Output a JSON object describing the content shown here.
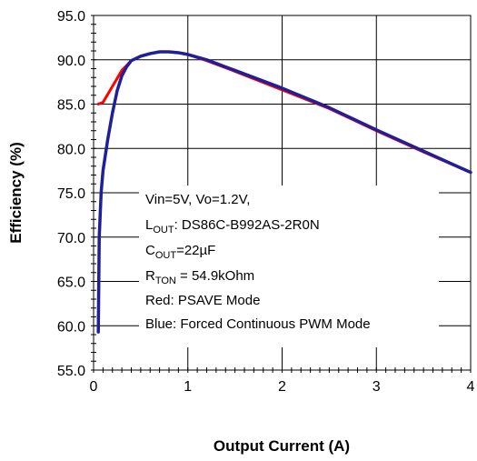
{
  "chart_data": {
    "type": "line",
    "xlabel": "Output Current (A)",
    "ylabel": "Efficiency (%)",
    "xlim": [
      0,
      4
    ],
    "ylim": [
      55,
      95
    ],
    "x_ticks": [
      0,
      1,
      2,
      3,
      4
    ],
    "x_tick_labels": [
      "0",
      "1",
      "2",
      "3",
      "4"
    ],
    "y_ticks": [
      55,
      60,
      65,
      70,
      75,
      80,
      85,
      90,
      95
    ],
    "y_tick_labels": [
      "55.0",
      "60.0",
      "65.0",
      "70.0",
      "75.0",
      "80.0",
      "85.0",
      "90.0",
      "95.0"
    ],
    "grid": true,
    "series": [
      {
        "color": "#ff0000",
        "x": [
          0.05,
          0.1,
          0.2,
          0.3,
          0.4,
          0.5,
          0.6,
          0.7,
          0.8,
          0.9,
          1.0,
          1.2,
          1.5,
          2.0,
          2.5,
          3.0,
          3.5,
          4.0
        ],
        "y": [
          85.0,
          85.2,
          87.0,
          88.8,
          89.9,
          90.4,
          90.7,
          90.9,
          90.9,
          90.8,
          90.6,
          89.9,
          88.7,
          86.6,
          84.5,
          82.0,
          79.6,
          77.3
        ]
      },
      {
        "color": "#1f1f99",
        "x": [
          0.05,
          0.06,
          0.08,
          0.1,
          0.15,
          0.2,
          0.25,
          0.3,
          0.35,
          0.4,
          0.5,
          0.6,
          0.7,
          0.8,
          0.9,
          1.0,
          1.2,
          1.5,
          2.0,
          2.5,
          3.0,
          3.5,
          4.0
        ],
        "y": [
          59.3,
          70.0,
          75.0,
          77.5,
          81.0,
          84.0,
          86.5,
          88.2,
          89.2,
          89.9,
          90.4,
          90.7,
          90.9,
          90.9,
          90.8,
          90.6,
          90.0,
          88.8,
          86.8,
          84.6,
          82.1,
          79.7,
          77.3
        ]
      }
    ]
  },
  "annotation": {
    "line1": "Vin=5V, Vo=1.2V,",
    "line2_main": "L",
    "line2_sub": "OUT",
    "line2_rest": ": DS86C-B992AS-2R0N",
    "line3_main": "C",
    "line3_sub": "OUT",
    "line3_rest": "=22µF",
    "line4_main": "R",
    "line4_sub": "TON",
    "line4_rest": " = 54.9kOhm",
    "line5": "Red: PSAVE Mode",
    "line6": "Blue: Forced Continuous PWM Mode"
  }
}
